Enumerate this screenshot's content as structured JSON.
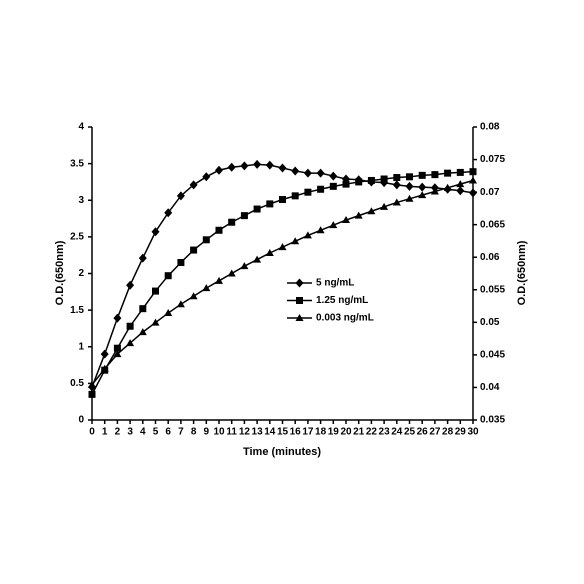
{
  "chart_data": {
    "type": "line",
    "x_label": "Time (minutes)",
    "y_label": "O.D.(650nm)",
    "y2_label": "O.D.(650nm)",
    "x": [
      0,
      1,
      2,
      3,
      4,
      5,
      6,
      7,
      8,
      9,
      10,
      11,
      12,
      13,
      14,
      15,
      16,
      17,
      18,
      19,
      20,
      21,
      22,
      23,
      24,
      25,
      26,
      27,
      28,
      29,
      30
    ],
    "xlim": [
      0,
      30
    ],
    "xticks": [
      0,
      1,
      2,
      3,
      4,
      5,
      6,
      7,
      8,
      9,
      10,
      11,
      12,
      13,
      14,
      15,
      16,
      17,
      18,
      19,
      20,
      21,
      22,
      23,
      24,
      25,
      26,
      27,
      28,
      29,
      30
    ],
    "ylim": [
      0,
      4
    ],
    "yticks": [
      0,
      0.5,
      1,
      1.5,
      2,
      2.5,
      3,
      3.5,
      4
    ],
    "y2lim": [
      0.035,
      0.08
    ],
    "y2ticks": [
      0.035,
      0.04,
      0.045,
      0.05,
      0.055,
      0.06,
      0.065,
      0.07,
      0.075,
      0.08
    ],
    "series": [
      {
        "name": "5 ng/mL",
        "color": "#000000",
        "marker": "diamond",
        "values": [
          0.45,
          0.9,
          1.39,
          1.84,
          2.21,
          2.57,
          2.83,
          3.06,
          3.21,
          3.32,
          3.41,
          3.45,
          3.47,
          3.49,
          3.48,
          3.44,
          3.4,
          3.37,
          3.37,
          3.33,
          3.29,
          3.28,
          3.25,
          3.24,
          3.21,
          3.19,
          3.18,
          3.17,
          3.15,
          3.13,
          3.1
        ]
      },
      {
        "name": "1.25 ng/mL",
        "color": "#000000",
        "marker": "square",
        "values": [
          0.35,
          0.68,
          0.98,
          1.28,
          1.52,
          1.76,
          1.97,
          2.15,
          2.32,
          2.46,
          2.59,
          2.7,
          2.79,
          2.88,
          2.95,
          3.01,
          3.06,
          3.11,
          3.15,
          3.19,
          3.22,
          3.25,
          3.27,
          3.29,
          3.31,
          3.32,
          3.34,
          3.35,
          3.37,
          3.38,
          3.39
        ]
      },
      {
        "name": "0.003 ng/mL",
        "color": "#000000",
        "marker": "triangle",
        "values": [
          0.48,
          0.7,
          0.9,
          1.05,
          1.2,
          1.33,
          1.46,
          1.58,
          1.69,
          1.8,
          1.9,
          2.0,
          2.1,
          2.19,
          2.28,
          2.36,
          2.44,
          2.52,
          2.59,
          2.66,
          2.73,
          2.79,
          2.85,
          2.91,
          2.97,
          3.02,
          3.07,
          3.12,
          3.17,
          3.22,
          3.27
        ]
      }
    ]
  }
}
